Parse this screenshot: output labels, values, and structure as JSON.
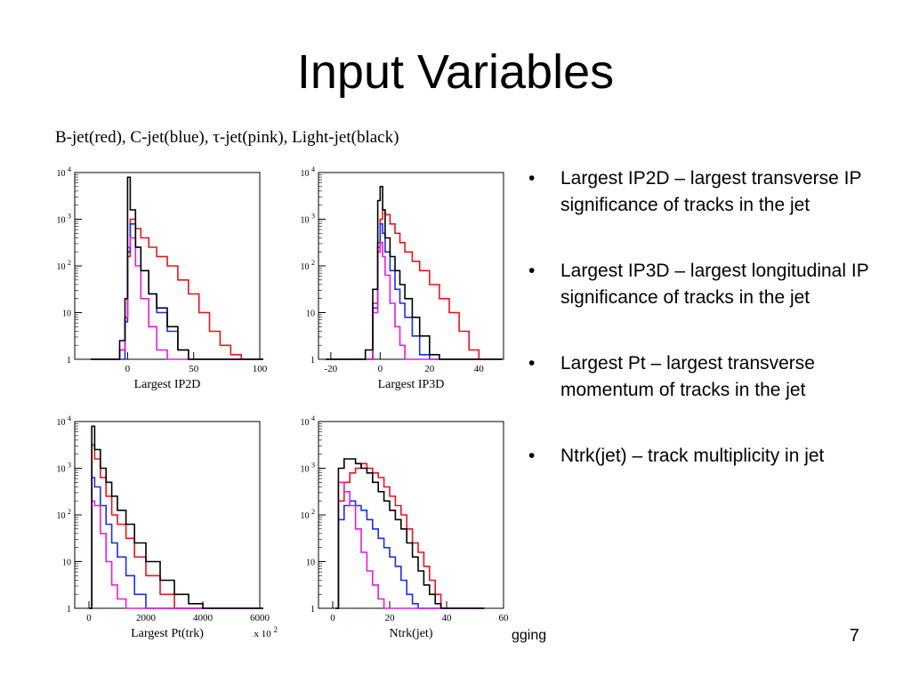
{
  "slide": {
    "title": "Input Variables",
    "legend_caption": "B-jet(red), C-jet(blue), τ-jet(pink), Light-jet(black)",
    "footer_text": "gging",
    "page_number": "7"
  },
  "bullets": [
    {
      "marker": "•",
      "text": "Largest IP2D – largest transverse IP significance of tracks in the jet"
    },
    {
      "marker": "•",
      "text": "Largest IP3D – largest longitudinal IP significance of tracks in the jet"
    },
    {
      "marker": "•",
      "text": "Largest Pt – largest transverse momentum of tracks in the jet"
    },
    {
      "marker": "•",
      "text": "Ntrk(jet) – track multiplicity in jet"
    }
  ],
  "colors": {
    "b_jet": "#e8141a",
    "c_jet": "#1a2ee8",
    "tau_jet": "#e81ae0",
    "light_jet": "#000000"
  },
  "chart_data": [
    {
      "type": "line",
      "xlabel": "Largest IP2D",
      "xlim": [
        -40,
        100
      ],
      "ylim": [
        0,
        4
      ],
      "log_y": true,
      "x_ticks": [
        "0",
        "50",
        "100"
      ],
      "x_tick_values": [
        0,
        50,
        100
      ],
      "y_ticks": [
        "1",
        "10",
        "10 2",
        "10 3",
        "10 4"
      ],
      "x_multiplier": "",
      "series": [
        {
          "color": "b_jet",
          "x": [
            -28,
            -20,
            -12,
            -6,
            -2,
            0,
            2,
            6,
            10,
            16,
            22,
            30,
            38,
            46,
            54,
            62,
            70,
            78,
            86,
            92,
            100
          ],
          "y": [
            -0.8,
            -0.8,
            -0.8,
            0.2,
            0.9,
            2.2,
            3.0,
            2.8,
            2.6,
            2.4,
            2.2,
            2.0,
            1.7,
            1.4,
            1.0,
            0.6,
            0.3,
            0.1,
            -0.8,
            -0.8,
            -0.8
          ]
        },
        {
          "color": "c_jet",
          "x": [
            -28,
            -20,
            -12,
            -6,
            -2,
            0,
            2,
            6,
            10,
            16,
            22,
            30,
            38,
            46,
            54,
            62,
            70,
            78,
            86,
            92,
            100
          ],
          "y": [
            -0.8,
            -0.8,
            -0.8,
            0.0,
            0.8,
            2.3,
            2.9,
            2.4,
            1.9,
            1.4,
            1.0,
            0.6,
            0.2,
            0.0,
            -0.8,
            -0.8,
            -0.8,
            -0.8,
            -0.8,
            -0.8,
            -0.8
          ]
        },
        {
          "color": "tau_jet",
          "x": [
            -28,
            -20,
            -12,
            -6,
            -2,
            0,
            2,
            6,
            10,
            16,
            22,
            30,
            38,
            46,
            54,
            62,
            70,
            78,
            86,
            92,
            100
          ],
          "y": [
            -0.8,
            -0.8,
            -0.8,
            0.2,
            0.9,
            2.4,
            2.6,
            2.0,
            1.3,
            0.7,
            0.2,
            0.0,
            -0.8,
            -0.8,
            -0.8,
            -0.8,
            -0.8,
            -0.8,
            -0.8,
            -0.8,
            -0.8
          ]
        },
        {
          "color": "light_jet",
          "x": [
            -28,
            -20,
            -12,
            -6,
            -2,
            0,
            2,
            6,
            10,
            16,
            22,
            30,
            38,
            46,
            54,
            62,
            70,
            78,
            86,
            92,
            100
          ],
          "y": [
            -0.8,
            -0.8,
            -0.8,
            0.4,
            1.3,
            3.9,
            3.2,
            2.4,
            1.9,
            1.4,
            1.1,
            0.7,
            0.2,
            0.0,
            -0.8,
            -0.8,
            -0.8,
            -0.8,
            -0.8,
            -0.8,
            -0.8
          ]
        }
      ]
    },
    {
      "type": "line",
      "xlabel": "Largest IP3D",
      "xlim": [
        -25,
        50
      ],
      "ylim": [
        0,
        4
      ],
      "log_y": true,
      "x_ticks": [
        "-20",
        "0",
        "20",
        "40"
      ],
      "x_tick_values": [
        -20,
        0,
        20,
        40
      ],
      "y_ticks": [
        "1",
        "10",
        "10 2",
        "10 3",
        "10 4"
      ],
      "x_multiplier": "",
      "series": [
        {
          "color": "b_jet",
          "x": [
            -22,
            -16,
            -10,
            -6,
            -3,
            -1,
            0,
            1,
            2,
            4,
            6,
            8,
            10,
            13,
            16,
            20,
            24,
            28,
            32,
            36,
            40,
            44,
            48
          ],
          "y": [
            -0.8,
            -0.8,
            -0.8,
            0.0,
            1.2,
            2.4,
            3.0,
            3.2,
            3.1,
            2.9,
            2.7,
            2.5,
            2.3,
            2.1,
            1.9,
            1.6,
            1.3,
            1.0,
            0.6,
            0.2,
            -0.8,
            -0.8,
            -0.8
          ]
        },
        {
          "color": "c_jet",
          "x": [
            -22,
            -16,
            -10,
            -6,
            -3,
            -1,
            0,
            1,
            2,
            4,
            6,
            8,
            10,
            13,
            16,
            20,
            24,
            28,
            32,
            36,
            40,
            44,
            48
          ],
          "y": [
            -0.8,
            -0.8,
            -0.8,
            0.0,
            1.1,
            2.5,
            2.9,
            2.7,
            2.3,
            1.9,
            1.5,
            1.2,
            0.9,
            0.5,
            0.1,
            -0.8,
            -0.8,
            -0.8,
            -0.8,
            -0.8,
            -0.8,
            -0.8,
            -0.8
          ]
        },
        {
          "color": "tau_jet",
          "x": [
            -22,
            -16,
            -10,
            -6,
            -3,
            -1,
            0,
            1,
            2,
            4,
            6,
            8,
            10,
            13,
            16,
            20,
            24,
            28,
            32,
            36,
            40,
            44,
            48
          ],
          "y": [
            -0.8,
            -0.8,
            -0.8,
            0.0,
            1.0,
            2.3,
            2.5,
            2.2,
            1.8,
            1.2,
            0.7,
            0.3,
            0.0,
            -0.8,
            -0.8,
            -0.8,
            -0.8,
            -0.8,
            -0.8,
            -0.8,
            -0.8,
            -0.8,
            -0.8
          ]
        },
        {
          "color": "light_jet",
          "x": [
            -22,
            -16,
            -10,
            -6,
            -3,
            -1,
            0,
            1,
            2,
            4,
            6,
            8,
            10,
            13,
            16,
            20,
            24,
            28,
            32,
            36,
            40,
            44,
            48
          ],
          "y": [
            -0.8,
            -0.8,
            -0.8,
            0.2,
            1.5,
            3.4,
            3.7,
            3.2,
            2.6,
            2.2,
            1.9,
            1.6,
            1.3,
            0.9,
            0.5,
            0.1,
            -0.8,
            -0.8,
            -0.8,
            -0.8,
            -0.8,
            -0.8,
            -0.8
          ]
        }
      ]
    },
    {
      "type": "line",
      "xlabel": "Largest Pt(trk)",
      "xlim": [
        -500,
        6000
      ],
      "ylim": [
        0,
        4
      ],
      "log_y": true,
      "x_ticks": [
        "0",
        "2000",
        "4000",
        "6000"
      ],
      "x_tick_values": [
        0,
        2000,
        4000,
        6000
      ],
      "y_ticks": [
        "1",
        "10",
        "10 2",
        "10 3",
        "10 4"
      ],
      "x_multiplier": "x 10 2",
      "series": [
        {
          "color": "b_jet",
          "x": [
            0,
            100,
            200,
            400,
            600,
            800,
            1000,
            1300,
            1600,
            2000,
            2500,
            3000,
            3500,
            4000,
            4500,
            5000,
            5500,
            6000
          ],
          "y": [
            -0.8,
            3.5,
            3.2,
            2.8,
            2.4,
            2.0,
            1.8,
            1.5,
            1.1,
            0.7,
            0.3,
            0.0,
            -0.8,
            -0.8,
            -0.8,
            -0.8,
            -0.8,
            -0.8
          ]
        },
        {
          "color": "c_jet",
          "x": [
            0,
            100,
            200,
            400,
            600,
            800,
            1000,
            1300,
            1600,
            2000,
            2500,
            3000,
            3500,
            4000,
            4500,
            5000,
            5500,
            6000
          ],
          "y": [
            -0.8,
            2.8,
            2.6,
            2.2,
            1.8,
            1.4,
            1.1,
            0.7,
            0.3,
            0.0,
            -0.8,
            -0.8,
            -0.8,
            -0.8,
            -0.8,
            -0.8,
            -0.8,
            -0.8
          ]
        },
        {
          "color": "tau_jet",
          "x": [
            0,
            100,
            200,
            400,
            600,
            800,
            1000,
            1300,
            1600,
            2000,
            2500,
            3000,
            3500,
            4000,
            4500,
            5000,
            5500,
            6000
          ],
          "y": [
            -0.8,
            2.3,
            2.2,
            1.6,
            1.0,
            0.5,
            0.2,
            0.0,
            -0.8,
            -0.8,
            -0.8,
            -0.8,
            -0.8,
            -0.8,
            -0.8,
            -0.8,
            -0.8,
            -0.8
          ]
        },
        {
          "color": "light_jet",
          "x": [
            0,
            100,
            200,
            400,
            600,
            800,
            1000,
            1300,
            1600,
            2000,
            2500,
            3000,
            3500,
            4000,
            4500,
            5000,
            5500,
            6000
          ],
          "y": [
            -0.8,
            3.9,
            3.4,
            3.0,
            2.7,
            2.4,
            2.1,
            1.8,
            1.4,
            1.0,
            0.6,
            0.3,
            0.1,
            0.0,
            0.0,
            0.0,
            -0.8,
            -0.8
          ]
        }
      ]
    },
    {
      "type": "line",
      "xlabel": "Ntrk(jet)",
      "xlim": [
        -5,
        60
      ],
      "ylim": [
        0,
        4
      ],
      "log_y": true,
      "x_ticks": [
        "0",
        "20",
        "40",
        "60"
      ],
      "x_tick_values": [
        0,
        20,
        40,
        60
      ],
      "y_ticks": [
        "1",
        "10",
        "10 2",
        "10 3",
        "10 4"
      ],
      "x_multiplier": "",
      "series": [
        {
          "color": "b_jet",
          "x": [
            1,
            2,
            4,
            6,
            8,
            10,
            12,
            14,
            16,
            18,
            20,
            22,
            24,
            26,
            28,
            30,
            32,
            34,
            36,
            38,
            40,
            44,
            48,
            52
          ],
          "y": [
            -0.8,
            2.3,
            2.7,
            2.9,
            3.0,
            3.1,
            3.0,
            2.9,
            2.8,
            2.6,
            2.4,
            2.2,
            2.0,
            1.7,
            1.4,
            1.2,
            0.9,
            0.6,
            0.3,
            0.0,
            -0.8,
            -0.8,
            -0.8,
            -0.8
          ]
        },
        {
          "color": "c_jet",
          "x": [
            1,
            2,
            4,
            6,
            8,
            10,
            12,
            14,
            16,
            18,
            20,
            22,
            24,
            26,
            28,
            30,
            32,
            34,
            36,
            38,
            40,
            44,
            48,
            52
          ],
          "y": [
            -0.8,
            1.9,
            2.2,
            2.3,
            2.2,
            2.1,
            1.9,
            1.7,
            1.5,
            1.3,
            1.1,
            0.9,
            0.6,
            0.3,
            0.1,
            0.0,
            -0.8,
            -0.8,
            -0.8,
            -0.8,
            -0.8,
            -0.8,
            -0.8,
            -0.8
          ]
        },
        {
          "color": "tau_jet",
          "x": [
            1,
            2,
            4,
            6,
            8,
            10,
            12,
            14,
            16,
            18,
            20,
            22,
            24,
            26,
            28,
            30,
            32,
            34,
            36,
            38,
            40,
            44,
            48,
            52
          ],
          "y": [
            -0.8,
            2.7,
            2.5,
            2.2,
            1.7,
            1.2,
            0.8,
            0.5,
            0.2,
            0.0,
            -0.8,
            -0.8,
            -0.8,
            -0.8,
            -0.8,
            -0.8,
            -0.8,
            -0.8,
            -0.8,
            -0.8,
            -0.8,
            -0.8,
            -0.8,
            -0.8
          ]
        },
        {
          "color": "light_jet",
          "x": [
            1,
            2,
            4,
            6,
            8,
            10,
            12,
            14,
            16,
            18,
            20,
            22,
            24,
            26,
            28,
            30,
            32,
            34,
            36,
            38,
            40,
            44,
            48,
            52
          ],
          "y": [
            -0.8,
            3.0,
            3.2,
            3.2,
            3.1,
            3.0,
            2.9,
            2.7,
            2.5,
            2.3,
            2.1,
            1.9,
            1.7,
            1.4,
            1.1,
            0.8,
            0.5,
            0.3,
            0.1,
            0.0,
            -0.8,
            -0.8,
            -0.8,
            -0.8
          ]
        }
      ]
    }
  ]
}
